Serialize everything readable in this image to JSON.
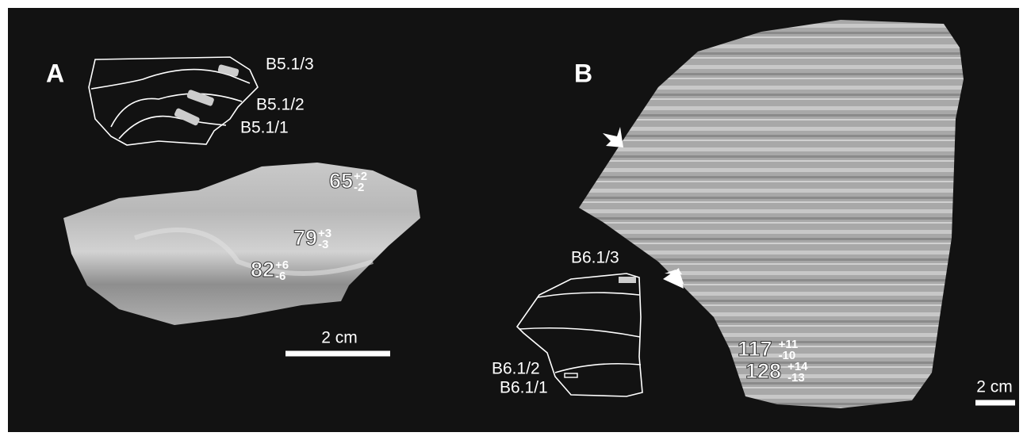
{
  "panels": [
    {
      "label": "A",
      "sketch_labels": [
        "B5.1/3",
        "B5.1/2",
        "B5.1/1"
      ],
      "ages": [
        {
          "value": "65",
          "plus": "+2",
          "minus": "-2"
        },
        {
          "value": "79",
          "plus": "+3",
          "minus": "-3"
        },
        {
          "value": "82",
          "plus": "+6",
          "minus": "-6"
        }
      ],
      "scale": "2 cm"
    },
    {
      "label": "B",
      "sketch_labels": [
        "B6.1/3",
        "B6.1/2",
        "B6.1/1"
      ],
      "ages": [
        {
          "value": "117",
          "plus": "+11",
          "minus": "-10"
        },
        {
          "value": "128",
          "plus": "+14",
          "minus": "-13"
        }
      ],
      "scale": "2 cm"
    }
  ]
}
